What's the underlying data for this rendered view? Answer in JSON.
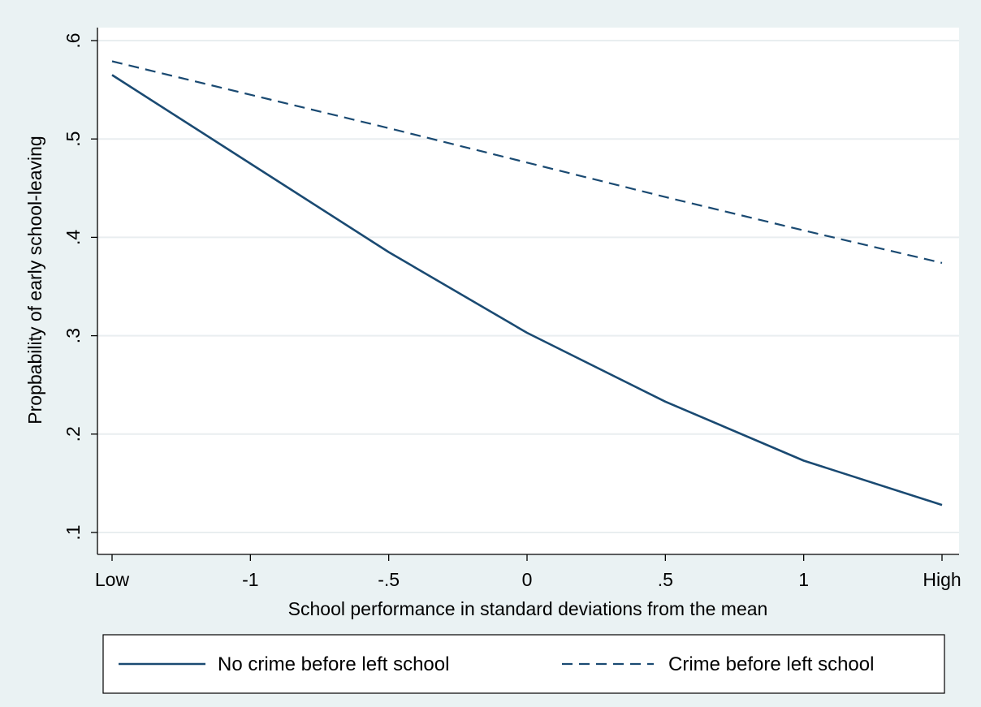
{
  "chart_data": {
    "type": "line",
    "xlabel": "School performance in standard deviations from the mean",
    "ylabel": "Propbability of early school-leaving",
    "x_ticks": [
      {
        "x": -1.5,
        "label": "Low"
      },
      {
        "x": -1,
        "label": "-1"
      },
      {
        "x": -0.5,
        "label": "-.5"
      },
      {
        "x": 0,
        "label": "0"
      },
      {
        "x": 0.5,
        "label": ".5"
      },
      {
        "x": 1,
        "label": "1"
      },
      {
        "x": 1.5,
        "label": "High"
      }
    ],
    "y_ticks": [
      {
        "y": 0.1,
        "label": ".1"
      },
      {
        "y": 0.2,
        "label": ".2"
      },
      {
        "y": 0.3,
        "label": ".3"
      },
      {
        "y": 0.4,
        "label": ".4"
      },
      {
        "y": 0.5,
        "label": ".5"
      },
      {
        "y": 0.6,
        "label": ".6"
      }
    ],
    "xlim": [
      -1.5,
      1.5
    ],
    "ylim": [
      0.1,
      0.6
    ],
    "grid": true,
    "legend_position": "bottom",
    "x": [
      -1.5,
      -1.0,
      -0.5,
      0.0,
      0.5,
      1.0,
      1.5
    ],
    "series": [
      {
        "name": "No crime before left school",
        "style": "solid",
        "color": "#1a4a72",
        "values": [
          0.565,
          0.475,
          0.385,
          0.303,
          0.233,
          0.173,
          0.128
        ]
      },
      {
        "name": "Crime before left school",
        "style": "dashed",
        "color": "#1a4a72",
        "values": [
          0.579,
          0.545,
          0.511,
          0.476,
          0.441,
          0.407,
          0.374
        ]
      }
    ]
  }
}
